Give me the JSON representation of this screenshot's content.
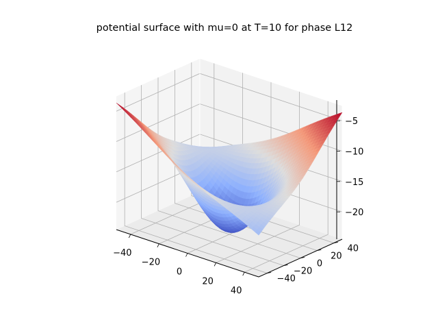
{
  "chart_data": {
    "type": "surface",
    "title": "potential surface with mu=0 at T=10 for phase L12",
    "xlabel": "",
    "ylabel": "",
    "zlabel": "",
    "x_ticks": [
      -40,
      -20,
      0,
      20,
      40
    ],
    "y_ticks": [
      -40,
      -20,
      0,
      20,
      40
    ],
    "z_ticks": [
      -5,
      -10,
      -15,
      -20
    ],
    "xlim": [
      -50,
      50
    ],
    "ylim": [
      -50,
      50
    ],
    "zlim": [
      -24.5,
      -2.5
    ],
    "grid": true,
    "colormap": "coolwarm",
    "colormap_stops": [
      "#3b4cc0",
      "#8db0fe",
      "#dddddd",
      "#f49a7b",
      "#b40426"
    ],
    "pane_color": "#f2f2f2",
    "grid_color": "#b0b0b0",
    "corner_values": {
      "x_min_y_min": -3.5,
      "x_max_y_max": -3.5,
      "x_min_y_max": -17.5,
      "x_max_y_min": -17.5,
      "center": -24,
      "ridges": [
        {
          "x": 0,
          "y": 50,
          "z": -10.6
        },
        {
          "x": 50,
          "y": 0,
          "z": -10.6
        },
        {
          "x": -50,
          "y": 0,
          "z": -10.6
        },
        {
          "x": 0,
          "y": -50,
          "z": -10.6
        }
      ]
    }
  }
}
